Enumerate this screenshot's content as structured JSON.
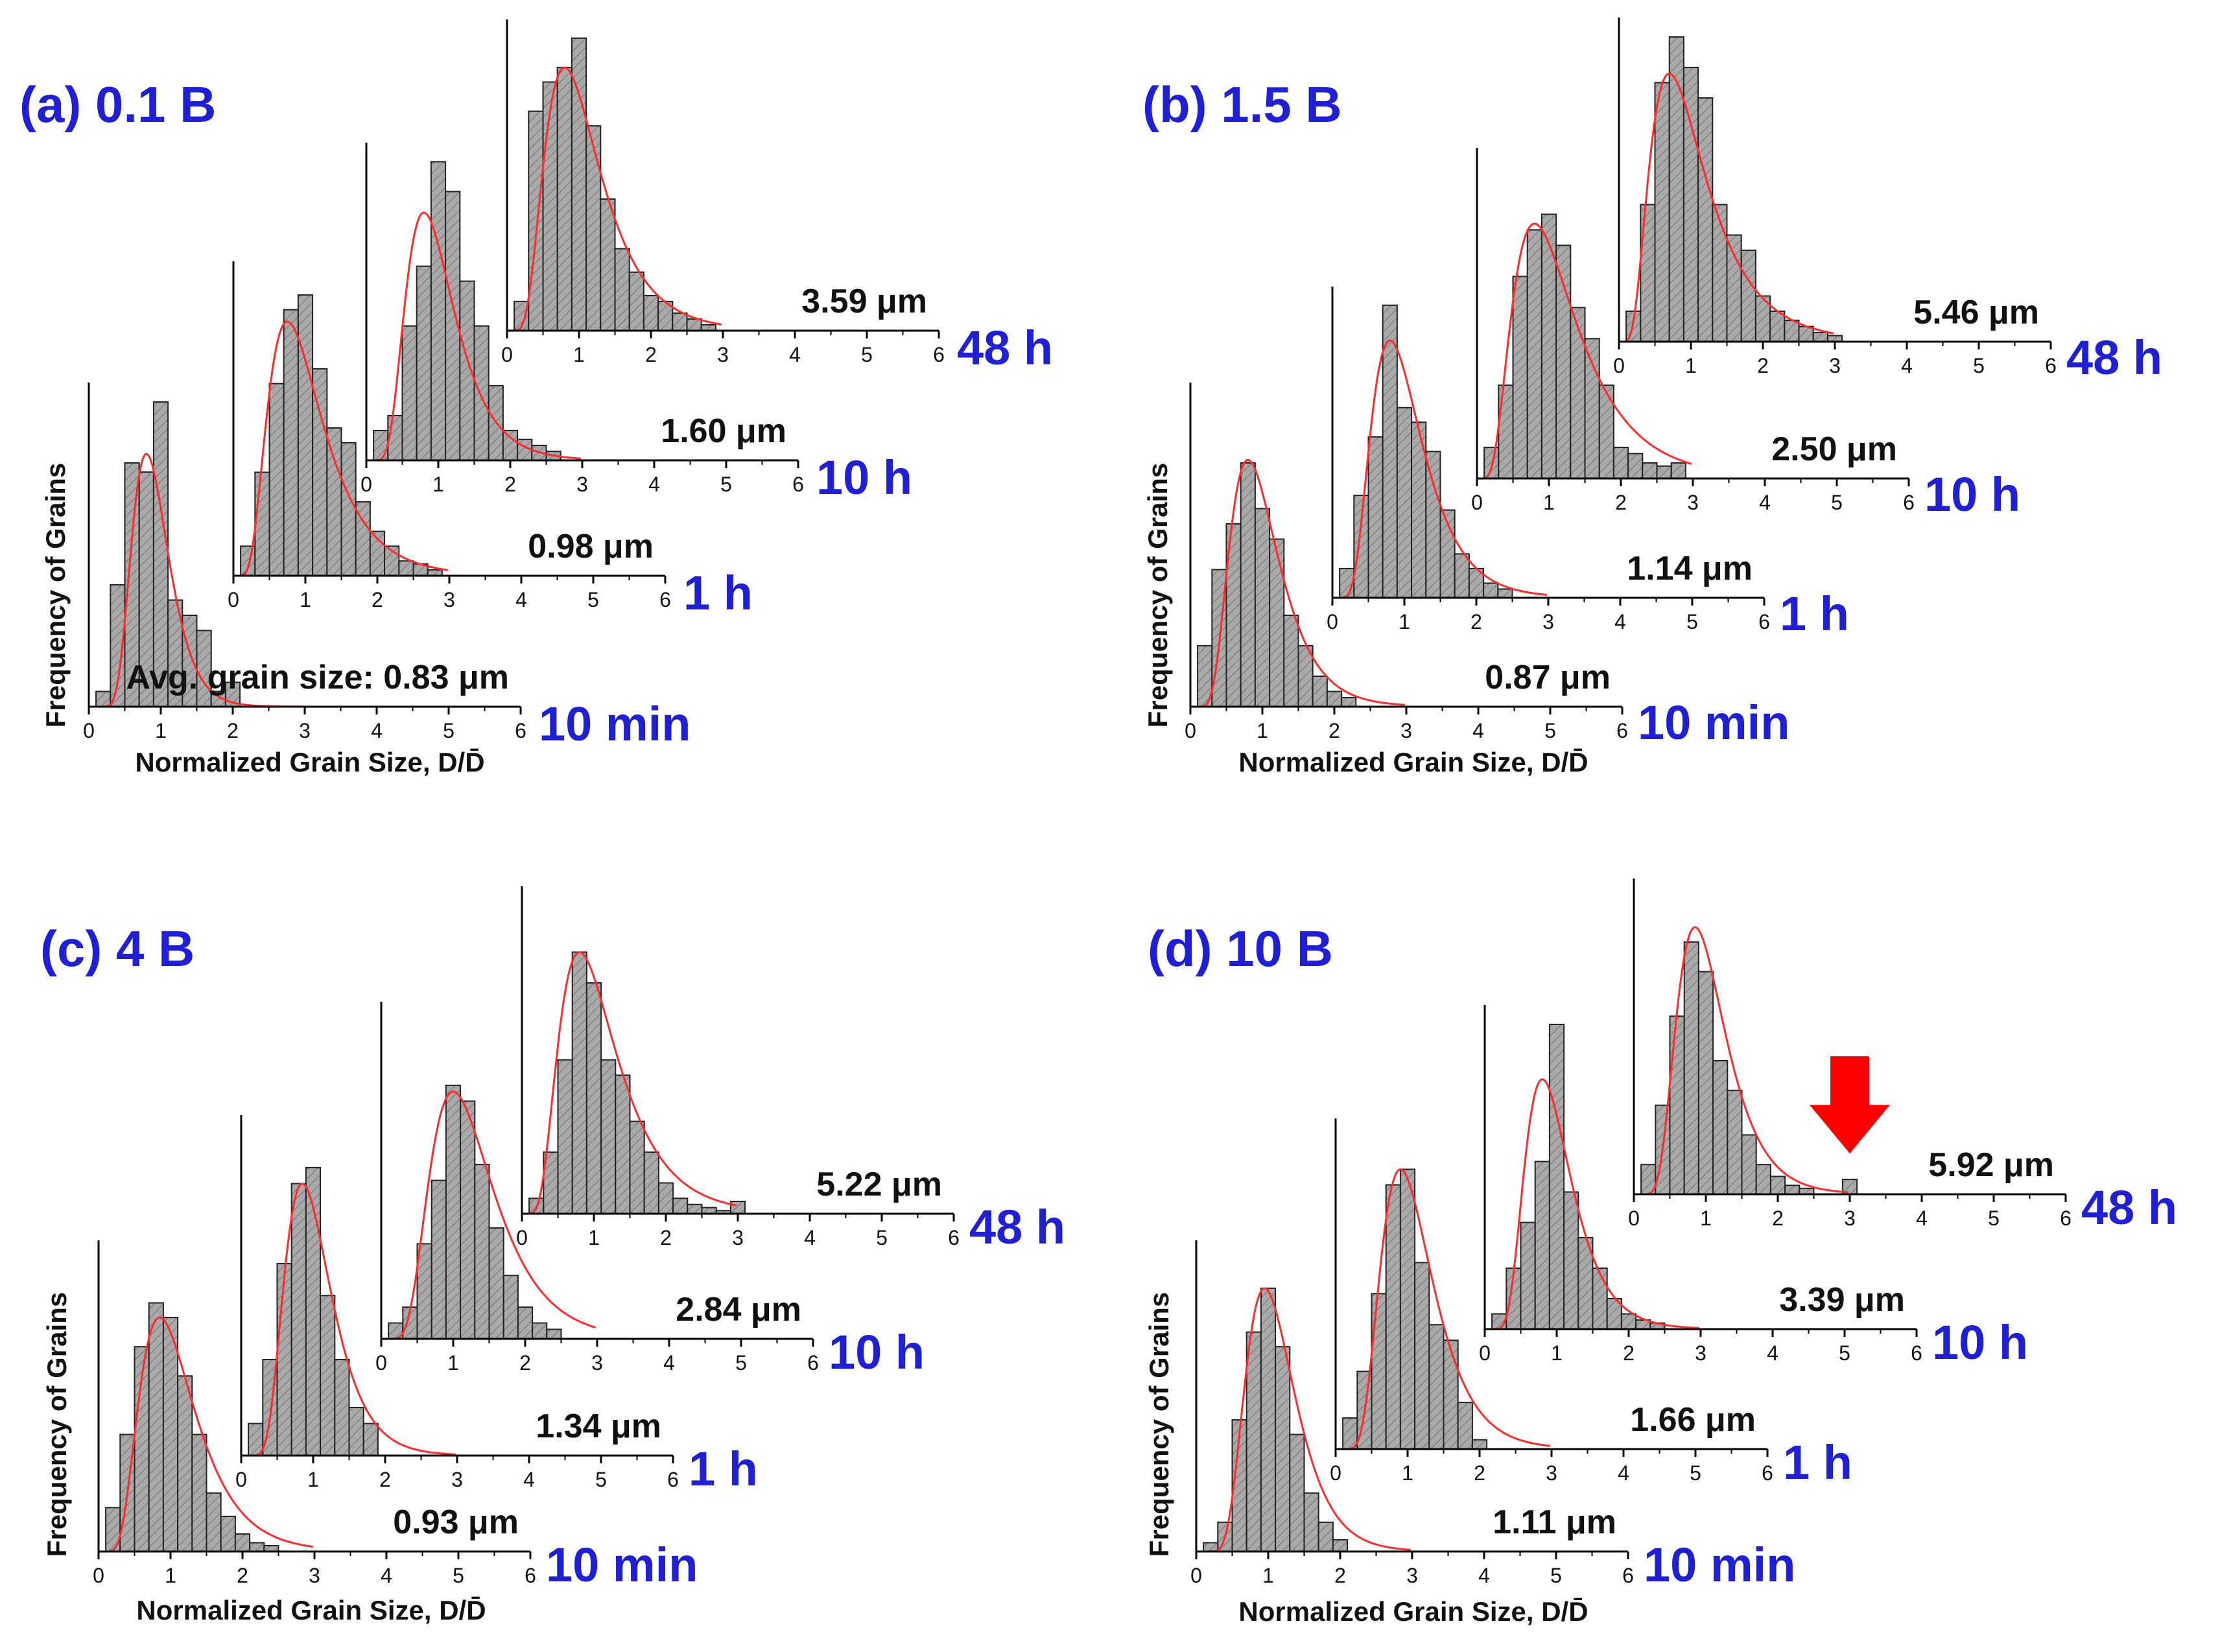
{
  "figure": {
    "axis_xlabel": "Normalized Grain Size, D/D̄",
    "axis_ylabel": "Frequency of Grains",
    "unit": "μm",
    "avg_prefix": "Avg. grain size: ",
    "xticks": [
      "0",
      "1",
      "2",
      "3",
      "4",
      "5",
      "6"
    ],
    "colors": {
      "title": "#1f1fd8",
      "time_label": "#1f1fd8",
      "bar_fill": "#a9a9a9",
      "bar_stroke": "#222222",
      "fit_curve": "#ff2a2a",
      "arrow": "#ff0000",
      "text": "#111111"
    }
  },
  "chart_data": [
    {
      "panel": "a",
      "title": "(a) 0.1 B",
      "type": "bar",
      "xlim": [
        0,
        6
      ],
      "series": [
        {
          "time": "10 min",
          "avg": "0.83",
          "avg_prefixed": true,
          "binwidth": 0.2,
          "bins": [
            0.2,
            0.4,
            0.6,
            0.8,
            1.0,
            1.2,
            1.4,
            1.6,
            1.8,
            2.0
          ],
          "values": [
            0.05,
            0.4,
            0.8,
            0.77,
            1.0,
            0.35,
            0.3,
            0.25,
            0.05,
            0.08
          ],
          "fit_mode": 0.8,
          "fit_peak": 0.83,
          "fit_sigma": 0.32
        },
        {
          "time": "1 h",
          "avg": "0.98",
          "binwidth": 0.2,
          "bins": [
            0.2,
            0.4,
            0.6,
            0.8,
            1.0,
            1.2,
            1.4,
            1.6,
            1.8,
            2.0,
            2.2,
            2.4,
            2.6,
            2.8
          ],
          "values": [
            0.1,
            0.35,
            0.65,
            0.9,
            0.95,
            0.7,
            0.5,
            0.45,
            0.25,
            0.15,
            0.1,
            0.05,
            0.04,
            0.02
          ],
          "fit_mode": 0.75,
          "fit_peak": 0.86,
          "fit_sigma": 0.5
        },
        {
          "time": "10 h",
          "avg": "1.60",
          "binwidth": 0.2,
          "bins": [
            0.2,
            0.4,
            0.6,
            0.8,
            1.0,
            1.2,
            1.4,
            1.6,
            1.8,
            2.0,
            2.2,
            2.4,
            2.6
          ],
          "values": [
            0.1,
            0.15,
            0.45,
            0.65,
            1.0,
            0.9,
            0.6,
            0.45,
            0.25,
            0.1,
            0.07,
            0.05,
            0.03
          ],
          "fit_mode": 0.8,
          "fit_peak": 0.83,
          "fit_sigma": 0.42
        },
        {
          "time": "48 h",
          "avg": "3.59",
          "binwidth": 0.2,
          "bins": [
            0.2,
            0.4,
            0.6,
            0.8,
            1.0,
            1.2,
            1.4,
            1.6,
            1.8,
            2.0,
            2.2,
            2.4,
            2.6,
            2.8
          ],
          "values": [
            0.1,
            0.75,
            0.85,
            0.9,
            1.0,
            0.7,
            0.45,
            0.28,
            0.2,
            0.12,
            0.1,
            0.06,
            0.04,
            0.02
          ],
          "fit_mode": 0.8,
          "fit_peak": 0.9,
          "fit_sigma": 0.48
        }
      ]
    },
    {
      "panel": "b",
      "title": "(b) 1.5 B",
      "type": "bar",
      "xlim": [
        0,
        6
      ],
      "series": [
        {
          "time": "10 min",
          "avg": "0.87",
          "binwidth": 0.2,
          "bins": [
            0.2,
            0.4,
            0.6,
            0.8,
            1.0,
            1.2,
            1.4,
            1.6,
            1.8,
            2.0,
            2.2
          ],
          "values": [
            0.2,
            0.45,
            0.6,
            0.8,
            0.65,
            0.55,
            0.3,
            0.2,
            0.1,
            0.05,
            0.03
          ],
          "fit_mode": 0.8,
          "fit_peak": 0.81,
          "fit_sigma": 0.42
        },
        {
          "time": "1 h",
          "avg": "1.14",
          "binwidth": 0.2,
          "bins": [
            0.2,
            0.4,
            0.6,
            0.8,
            1.0,
            1.2,
            1.4,
            1.6,
            1.8,
            2.0,
            2.2,
            2.4
          ],
          "values": [
            0.1,
            0.35,
            0.55,
            1.0,
            0.65,
            0.6,
            0.5,
            0.3,
            0.15,
            0.1,
            0.05,
            0.03
          ],
          "fit_mode": 0.8,
          "fit_peak": 0.88,
          "fit_sigma": 0.44
        },
        {
          "time": "10 h",
          "avg": "2.50",
          "binwidth": 0.2,
          "bins": [
            0.2,
            0.4,
            0.6,
            0.8,
            1.0,
            1.2,
            1.4,
            1.6,
            1.8,
            2.0,
            2.2,
            2.4,
            2.6,
            2.8
          ],
          "values": [
            0.1,
            0.3,
            0.65,
            0.8,
            0.85,
            0.75,
            0.55,
            0.45,
            0.3,
            0.1,
            0.08,
            0.05,
            0.04,
            0.05
          ],
          "fit_mode": 0.8,
          "fit_peak": 0.82,
          "fit_sigma": 0.55
        },
        {
          "time": "48 h",
          "avg": "5.46",
          "binwidth": 0.2,
          "bins": [
            0.2,
            0.4,
            0.6,
            0.8,
            1.0,
            1.2,
            1.4,
            1.6,
            1.8,
            2.0,
            2.2,
            2.4,
            2.6,
            2.8,
            3.0
          ],
          "values": [
            0.1,
            0.45,
            0.85,
            1.0,
            0.9,
            0.8,
            0.45,
            0.35,
            0.3,
            0.15,
            0.1,
            0.07,
            0.05,
            0.03,
            0.02
          ],
          "fit_mode": 0.7,
          "fit_peak": 0.88,
          "fit_sigma": 0.55
        }
      ]
    },
    {
      "panel": "c",
      "title": "(c) 4 B",
      "type": "bar",
      "xlim": [
        0,
        6
      ],
      "series": [
        {
          "time": "10 min",
          "avg": "0.93",
          "binwidth": 0.2,
          "bins": [
            0.2,
            0.4,
            0.6,
            0.8,
            1.0,
            1.2,
            1.4,
            1.6,
            1.8,
            2.0,
            2.2,
            2.4
          ],
          "values": [
            0.15,
            0.4,
            0.7,
            0.85,
            0.8,
            0.6,
            0.4,
            0.2,
            0.12,
            0.06,
            0.03,
            0.02
          ],
          "fit_mode": 0.85,
          "fit_peak": 0.8,
          "fit_sigma": 0.45
        },
        {
          "time": "1 h",
          "avg": "1.34",
          "binwidth": 0.2,
          "bins": [
            0.2,
            0.4,
            0.6,
            0.8,
            1.0,
            1.2,
            1.4,
            1.6,
            1.8
          ],
          "values": [
            0.1,
            0.3,
            0.6,
            0.85,
            0.9,
            0.5,
            0.3,
            0.15,
            0.1
          ],
          "fit_mode": 0.85,
          "fit_peak": 0.85,
          "fit_sigma": 0.38
        },
        {
          "time": "10 h",
          "avg": "2.84",
          "binwidth": 0.2,
          "bins": [
            0.2,
            0.4,
            0.6,
            0.8,
            1.0,
            1.2,
            1.4,
            1.6,
            1.8,
            2.0,
            2.2,
            2.4
          ],
          "values": [
            0.05,
            0.1,
            0.3,
            0.5,
            0.8,
            0.75,
            0.55,
            0.35,
            0.2,
            0.1,
            0.05,
            0.03
          ],
          "fit_mode": 1.0,
          "fit_peak": 0.78,
          "fit_sigma": 0.44
        },
        {
          "time": "48 h",
          "avg": "5.22",
          "binwidth": 0.2,
          "bins": [
            0.2,
            0.4,
            0.6,
            0.8,
            1.0,
            1.2,
            1.4,
            1.6,
            1.8,
            2.0,
            2.2,
            2.4,
            2.6,
            2.8,
            3.0
          ],
          "values": [
            0.05,
            0.2,
            0.5,
            0.85,
            0.75,
            0.5,
            0.45,
            0.3,
            0.2,
            0.1,
            0.05,
            0.03,
            0.02,
            0.01,
            0.04
          ],
          "fit_mode": 0.8,
          "fit_peak": 0.85,
          "fit_sigma": 0.5
        }
      ]
    },
    {
      "panel": "d",
      "title": "(d) 10 B",
      "type": "bar",
      "xlim": [
        0,
        6
      ],
      "series": [
        {
          "time": "10 min",
          "avg": "1.11",
          "binwidth": 0.2,
          "bins": [
            0.2,
            0.4,
            0.6,
            0.8,
            1.0,
            1.2,
            1.4,
            1.6,
            1.8,
            2.0
          ],
          "values": [
            0.03,
            0.1,
            0.45,
            0.75,
            0.9,
            0.7,
            0.4,
            0.2,
            0.1,
            0.04
          ],
          "fit_mode": 0.95,
          "fit_peak": 0.9,
          "fit_sigma": 0.36
        },
        {
          "time": "1 h",
          "avg": "1.66",
          "binwidth": 0.2,
          "bins": [
            0.2,
            0.4,
            0.6,
            0.8,
            1.0,
            1.2,
            1.4,
            1.6,
            1.8,
            2.0
          ],
          "values": [
            0.1,
            0.25,
            0.5,
            0.85,
            0.9,
            0.6,
            0.4,
            0.35,
            0.15,
            0.03
          ],
          "fit_mode": 0.9,
          "fit_peak": 0.9,
          "fit_sigma": 0.4
        },
        {
          "time": "10 h",
          "avg": "3.39",
          "binwidth": 0.2,
          "bins": [
            0.2,
            0.4,
            0.6,
            0.8,
            1.0,
            1.2,
            1.4,
            1.6,
            1.8,
            2.0,
            2.2,
            2.4
          ],
          "values": [
            0.05,
            0.2,
            0.35,
            0.55,
            1.0,
            0.45,
            0.3,
            0.2,
            0.1,
            0.05,
            0.03,
            0.02
          ],
          "fit_mode": 0.8,
          "fit_peak": 0.82,
          "fit_sigma": 0.4
        },
        {
          "time": "48 h",
          "avg": "5.92",
          "binwidth": 0.2,
          "bins": [
            0.2,
            0.4,
            0.6,
            0.8,
            1.0,
            1.2,
            1.4,
            1.6,
            1.8,
            2.0,
            2.2,
            2.4,
            3.0
          ],
          "values": [
            0.1,
            0.3,
            0.6,
            0.85,
            0.75,
            0.45,
            0.35,
            0.2,
            0.1,
            0.06,
            0.03,
            0.02,
            0.05
          ],
          "fit_mode": 0.85,
          "fit_peak": 0.9,
          "fit_sigma": 0.4,
          "arrow_at": 3.0
        }
      ]
    }
  ]
}
